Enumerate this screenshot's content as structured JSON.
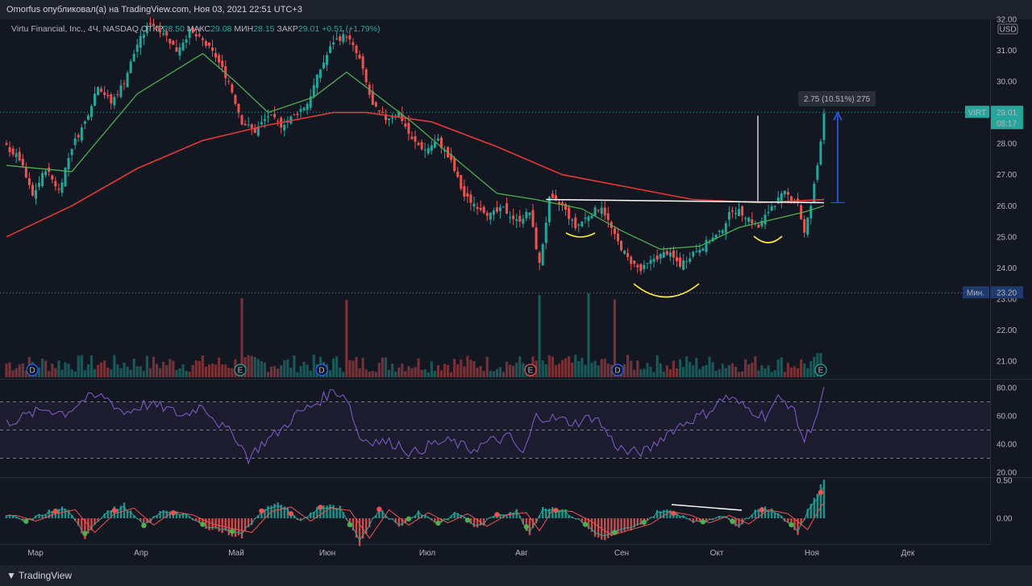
{
  "header": {
    "published": "Omorfus опубликовал(а) на TradingView.com, Ноя 03, 2021 22:51 UTC+3"
  },
  "legend": {
    "symbol": "Virtu Financial, Inc., 4Ч, NASDAQ",
    "open_label": "ОТКР",
    "open": "28.50",
    "high_label": "МАКС",
    "high": "29.08",
    "low_label": "МИН",
    "low": "28.15",
    "close_label": "ЗАКР",
    "close": "29.01",
    "change": "+0.51 (+1.79%)"
  },
  "measure_label": "2.75 (10.51%) 275",
  "price_tag": {
    "ticker": "VIRT",
    "price": "29.01",
    "time": "08:17"
  },
  "min_tag": {
    "label": "Мин.",
    "value": "23.20"
  },
  "currency": "USD",
  "footer": {
    "brand": "TradingView"
  },
  "colors": {
    "bg": "#131722",
    "up": "#26a69a",
    "down": "#ef5350",
    "ma_fast": "#4caf50",
    "ma_slow": "#e53935",
    "rsi": "#7e57c2",
    "neckline": "#ffffff",
    "arc": "#ffeb3b",
    "measure": "#2962ff"
  },
  "event_badges": [
    "D",
    "E",
    "D",
    "E",
    "D",
    "E"
  ],
  "chart_data": [
    {
      "type": "candlestick",
      "title": "",
      "x_tick_labels": [
        "Мар",
        "Апр",
        "Май",
        "Июн",
        "Июл",
        "Авг",
        "Сен",
        "Окт",
        "Ноя",
        "Дек"
      ],
      "y_tick_labels": [
        "21.00",
        "22.00",
        "23.00",
        "24.00",
        "25.00",
        "26.00",
        "27.00",
        "28.00",
        "29.00",
        "30.00",
        "31.00",
        "32.00"
      ],
      "ylim": [
        20.6,
        32.2
      ],
      "price_path": [
        [
          0,
          27.9
        ],
        [
          4,
          27.5
        ],
        [
          8,
          26.3
        ],
        [
          12,
          27.2
        ],
        [
          16,
          26.5
        ],
        [
          20,
          27.9
        ],
        [
          24,
          28.7
        ],
        [
          28,
          29.9
        ],
        [
          32,
          29.3
        ],
        [
          36,
          30.0
        ],
        [
          40,
          31.2
        ],
        [
          44,
          31.9
        ],
        [
          48,
          31.6
        ],
        [
          52,
          31.0
        ],
        [
          56,
          31.6
        ],
        [
          60,
          31.3
        ],
        [
          64,
          30.8
        ],
        [
          68,
          30.0
        ],
        [
          72,
          28.7
        ],
        [
          76,
          28.4
        ],
        [
          80,
          28.9
        ],
        [
          84,
          28.6
        ],
        [
          88,
          28.9
        ],
        [
          92,
          29.3
        ],
        [
          96,
          30.4
        ],
        [
          100,
          31.3
        ],
        [
          104,
          31.5
        ],
        [
          108,
          30.7
        ],
        [
          112,
          29.2
        ],
        [
          116,
          28.8
        ],
        [
          120,
          29.0
        ],
        [
          124,
          28.1
        ],
        [
          128,
          27.8
        ],
        [
          132,
          28.1
        ],
        [
          136,
          27.4
        ],
        [
          140,
          26.3
        ],
        [
          144,
          26.0
        ],
        [
          148,
          25.7
        ],
        [
          152,
          25.9
        ],
        [
          156,
          25.5
        ],
        [
          160,
          25.8
        ],
        [
          163,
          24.1
        ],
        [
          166,
          26.2
        ],
        [
          170,
          26.0
        ],
        [
          174,
          25.3
        ],
        [
          178,
          25.7
        ],
        [
          182,
          26.0
        ],
        [
          186,
          25.0
        ],
        [
          190,
          24.3
        ],
        [
          194,
          23.9
        ],
        [
          198,
          24.3
        ],
        [
          202,
          24.5
        ],
        [
          206,
          24.1
        ],
        [
          210,
          24.5
        ],
        [
          214,
          24.8
        ],
        [
          218,
          25.1
        ],
        [
          222,
          25.9
        ],
        [
          226,
          25.7
        ],
        [
          230,
          25.3
        ],
        [
          234,
          26.0
        ],
        [
          238,
          26.4
        ],
        [
          242,
          26.1
        ],
        [
          244,
          25.1
        ],
        [
          246,
          26.0
        ],
        [
          248,
          27.3
        ],
        [
          250,
          29.01
        ]
      ],
      "ma_fast": [
        [
          0,
          27.3
        ],
        [
          20,
          27.1
        ],
        [
          40,
          29.6
        ],
        [
          60,
          30.9
        ],
        [
          70,
          30.0
        ],
        [
          80,
          29.0
        ],
        [
          94,
          29.5
        ],
        [
          104,
          30.3
        ],
        [
          114,
          29.5
        ],
        [
          124,
          28.7
        ],
        [
          134,
          27.8
        ],
        [
          150,
          26.4
        ],
        [
          162,
          26.2
        ],
        [
          176,
          25.9
        ],
        [
          188,
          25.2
        ],
        [
          200,
          24.6
        ],
        [
          212,
          24.7
        ],
        [
          224,
          25.3
        ],
        [
          236,
          25.6
        ],
        [
          244,
          25.8
        ],
        [
          250,
          26.0
        ]
      ],
      "ma_slow": [
        [
          0,
          25.0
        ],
        [
          20,
          26.0
        ],
        [
          40,
          27.2
        ],
        [
          60,
          28.1
        ],
        [
          80,
          28.6
        ],
        [
          100,
          29.0
        ],
        [
          110,
          29.0
        ],
        [
          130,
          28.7
        ],
        [
          150,
          27.9
        ],
        [
          170,
          27.0
        ],
        [
          190,
          26.6
        ],
        [
          210,
          26.2
        ],
        [
          230,
          26.1
        ],
        [
          250,
          26.2
        ]
      ],
      "series": [
        {
          "name": "Объём",
          "type": "bar"
        }
      ]
    },
    {
      "type": "line",
      "title": "",
      "y_tick_labels": [
        "20.00",
        "40.00",
        "60.00",
        "80.00"
      ],
      "ylim": [
        17,
        82
      ],
      "bands": [
        30,
        50,
        70
      ],
      "values": [
        [
          0,
          55
        ],
        [
          6,
          60
        ],
        [
          12,
          65
        ],
        [
          18,
          62
        ],
        [
          24,
          72
        ],
        [
          30,
          74
        ],
        [
          36,
          62
        ],
        [
          42,
          68
        ],
        [
          48,
          66
        ],
        [
          54,
          60
        ],
        [
          60,
          68
        ],
        [
          66,
          52
        ],
        [
          70,
          46
        ],
        [
          74,
          30
        ],
        [
          78,
          40
        ],
        [
          84,
          50
        ],
        [
          88,
          60
        ],
        [
          94,
          68
        ],
        [
          100,
          78
        ],
        [
          104,
          74
        ],
        [
          108,
          44
        ],
        [
          114,
          42
        ],
        [
          120,
          40
        ],
        [
          124,
          33
        ],
        [
          130,
          40
        ],
        [
          136,
          42
        ],
        [
          142,
          36
        ],
        [
          148,
          42
        ],
        [
          154,
          45
        ],
        [
          158,
          32
        ],
        [
          162,
          60
        ],
        [
          168,
          58
        ],
        [
          174,
          55
        ],
        [
          180,
          60
        ],
        [
          186,
          40
        ],
        [
          190,
          34
        ],
        [
          196,
          35
        ],
        [
          202,
          48
        ],
        [
          208,
          56
        ],
        [
          214,
          62
        ],
        [
          220,
          74
        ],
        [
          226,
          66
        ],
        [
          232,
          60
        ],
        [
          236,
          72
        ],
        [
          240,
          68
        ],
        [
          244,
          42
        ],
        [
          248,
          62
        ],
        [
          250,
          77
        ]
      ]
    },
    {
      "type": "bar",
      "title": "",
      "y_tick_labels": [
        "0.00",
        "0.50"
      ],
      "ylim": [
        -0.7,
        0.6
      ],
      "values": [
        [
          0,
          0.05
        ],
        [
          6,
          -0.05
        ],
        [
          12,
          0.08
        ],
        [
          18,
          0.15
        ],
        [
          24,
          -0.25
        ],
        [
          30,
          0.08
        ],
        [
          36,
          0.18
        ],
        [
          42,
          -0.12
        ],
        [
          48,
          0.12
        ],
        [
          54,
          0.06
        ],
        [
          60,
          -0.1
        ],
        [
          66,
          -0.18
        ],
        [
          72,
          -0.25
        ],
        [
          78,
          0.12
        ],
        [
          84,
          0.2
        ],
        [
          90,
          -0.05
        ],
        [
          96,
          0.18
        ],
        [
          102,
          0.14
        ],
        [
          108,
          -0.35
        ],
        [
          114,
          0.15
        ],
        [
          120,
          -0.12
        ],
        [
          126,
          0.1
        ],
        [
          132,
          -0.08
        ],
        [
          138,
          0.08
        ],
        [
          144,
          -0.14
        ],
        [
          150,
          0.06
        ],
        [
          156,
          0.1
        ],
        [
          160,
          -0.22
        ],
        [
          164,
          0.15
        ],
        [
          170,
          0.12
        ],
        [
          176,
          -0.06
        ],
        [
          182,
          -0.3
        ],
        [
          188,
          -0.2
        ],
        [
          194,
          -0.1
        ],
        [
          200,
          0.12
        ],
        [
          206,
          0.06
        ],
        [
          212,
          -0.08
        ],
        [
          218,
          0.05
        ],
        [
          224,
          -0.1
        ],
        [
          230,
          0.15
        ],
        [
          236,
          0.08
        ],
        [
          242,
          -0.2
        ],
        [
          246,
          0.2
        ],
        [
          250,
          0.5
        ]
      ]
    }
  ]
}
